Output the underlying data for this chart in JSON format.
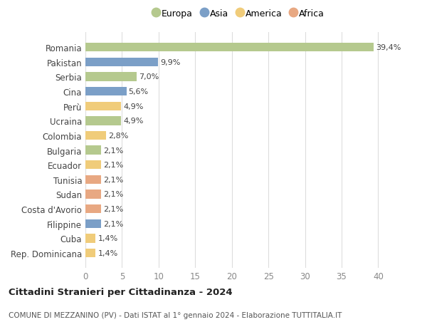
{
  "countries": [
    "Romania",
    "Pakistan",
    "Serbia",
    "Cina",
    "Perù",
    "Ucraina",
    "Colombia",
    "Bulgaria",
    "Ecuador",
    "Tunisia",
    "Sudan",
    "Costa d'Avorio",
    "Filippine",
    "Cuba",
    "Rep. Dominicana"
  ],
  "values": [
    39.4,
    9.9,
    7.0,
    5.6,
    4.9,
    4.9,
    2.8,
    2.1,
    2.1,
    2.1,
    2.1,
    2.1,
    2.1,
    1.4,
    1.4
  ],
  "labels": [
    "39,4%",
    "9,9%",
    "7,0%",
    "5,6%",
    "4,9%",
    "4,9%",
    "2,8%",
    "2,1%",
    "2,1%",
    "2,1%",
    "2,1%",
    "2,1%",
    "2,1%",
    "1,4%",
    "1,4%"
  ],
  "continents": [
    "Europa",
    "Asia",
    "Europa",
    "Asia",
    "America",
    "Europa",
    "America",
    "Europa",
    "America",
    "Africa",
    "Africa",
    "Africa",
    "Asia",
    "America",
    "America"
  ],
  "colors": {
    "Europa": "#b5c98e",
    "Asia": "#7b9fc7",
    "America": "#f0cc7a",
    "Africa": "#e8a882"
  },
  "legend_order": [
    "Europa",
    "Asia",
    "America",
    "Africa"
  ],
  "title": "Cittadini Stranieri per Cittadinanza - 2024",
  "subtitle": "COMUNE DI MEZZANINO (PV) - Dati ISTAT al 1° gennaio 2024 - Elaborazione TUTTITALIA.IT",
  "xlim": [
    0,
    42
  ],
  "xticks": [
    0,
    5,
    10,
    15,
    20,
    25,
    30,
    35,
    40
  ],
  "background_color": "#ffffff",
  "grid_color": "#dddddd",
  "bar_height": 0.6
}
